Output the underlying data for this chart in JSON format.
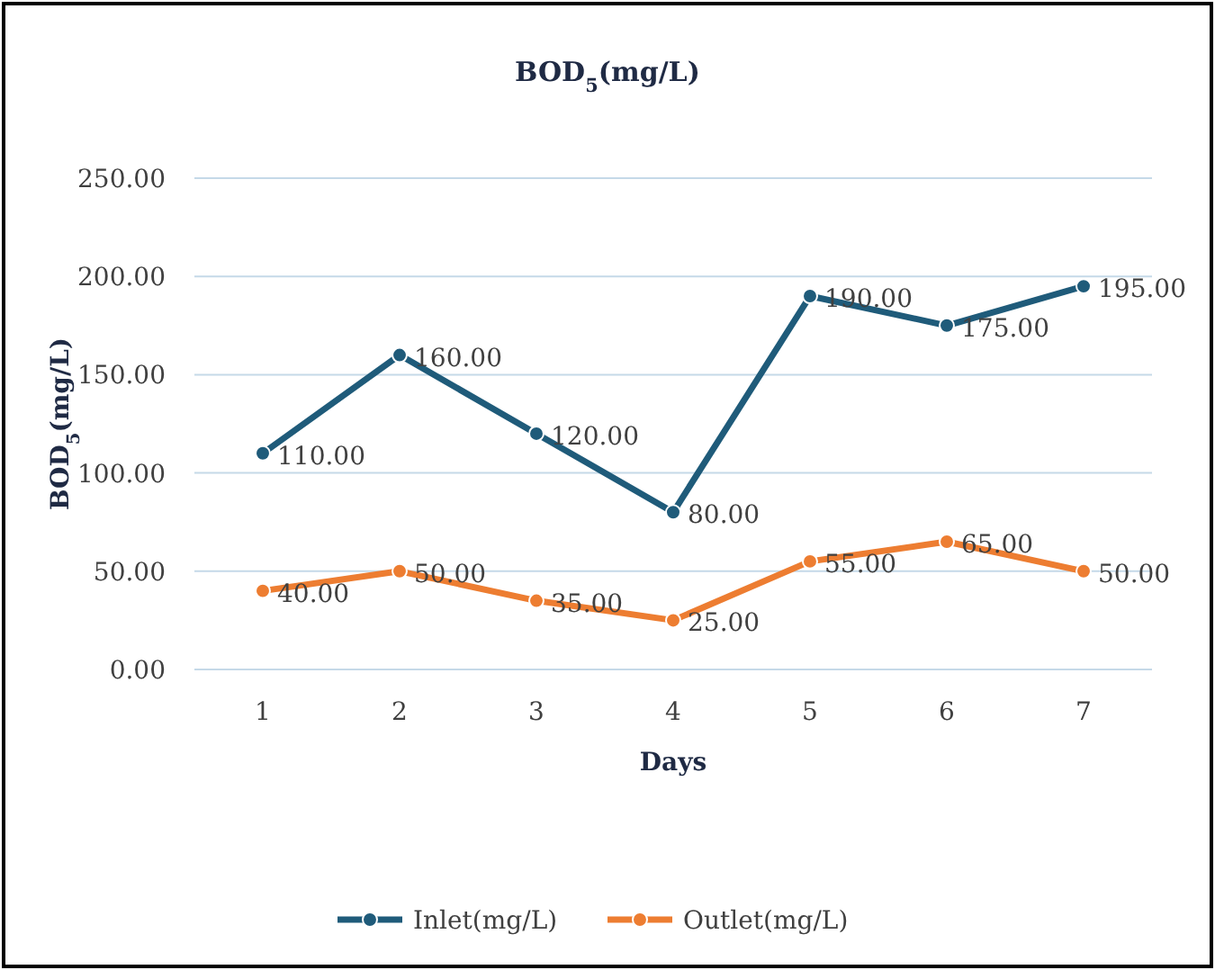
{
  "chart_data": {
    "type": "line",
    "title": "BOD$_{5}$(mg/L)",
    "xlabel": "Days",
    "ylabel": "BOD$_{5}$(mg/L)",
    "categories": [
      "1",
      "2",
      "3",
      "4",
      "5",
      "6",
      "7"
    ],
    "ylim": [
      0,
      250
    ],
    "yticks": [
      {
        "value": 0,
        "label": "0.00"
      },
      {
        "value": 50,
        "label": "50.00"
      },
      {
        "value": 100,
        "label": "100.00"
      },
      {
        "value": 150,
        "label": "150.00"
      },
      {
        "value": 200,
        "label": "200.00"
      },
      {
        "value": 250,
        "label": "250.00"
      }
    ],
    "grid": "y",
    "legend": "bottom",
    "marker": "circle",
    "line_style": "solid",
    "series": [
      {
        "name": "Inlet(mg/L)",
        "color": "#1f5b7a",
        "values": [
          110,
          160,
          120,
          80,
          190,
          175,
          195
        ],
        "value_labels": [
          "110.00",
          "160.00",
          "120.00",
          "80.00",
          "190.00",
          "175.00",
          "195.00"
        ]
      },
      {
        "name": "Outlet(mg/L)",
        "color": "#ed7d31",
        "values": [
          40,
          50,
          35,
          25,
          55,
          65,
          50
        ],
        "value_labels": [
          "40.00",
          "50.00",
          "35.00",
          "25.00",
          "55.00",
          "65.00",
          "50.00"
        ]
      }
    ]
  }
}
